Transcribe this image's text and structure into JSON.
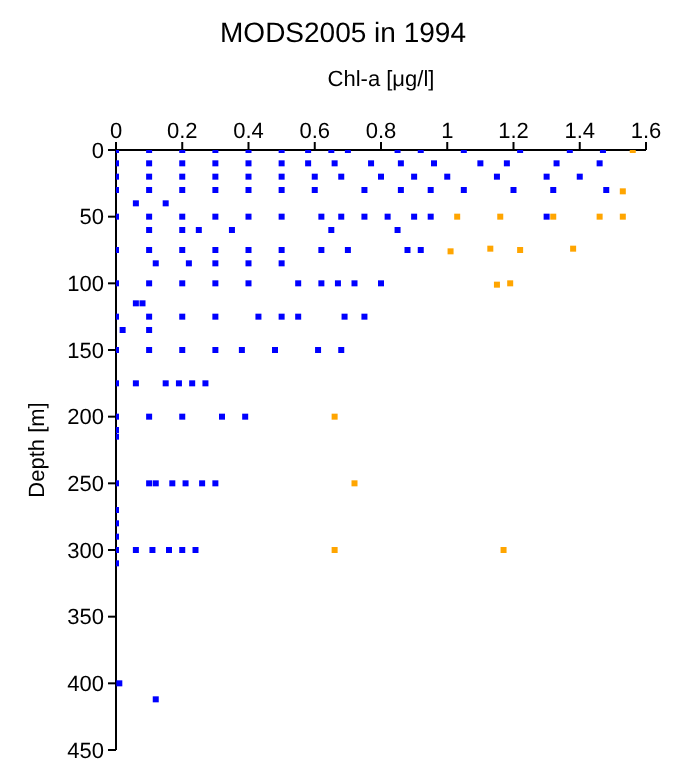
{
  "chart_data": {
    "type": "scatter",
    "title": "MODS2005 in 1994",
    "xlabel": "Chl-a [μg/l]",
    "ylabel": "Depth [m]",
    "xlim": [
      0,
      1.6
    ],
    "xticks": [
      0,
      0.2,
      0.4,
      0.6,
      0.8,
      1,
      1.2,
      1.4,
      1.6
    ],
    "ylim": [
      450,
      0
    ],
    "yticks": [
      0,
      50,
      100,
      150,
      200,
      250,
      300,
      350,
      400,
      450
    ],
    "grid": false,
    "legend": false,
    "marker": "square",
    "series": [
      {
        "color": "#0000ff",
        "x": [
          0,
          0.1,
          0.2,
          0.3,
          0.4,
          0.5,
          0.58,
          0.65,
          0.7,
          0.85,
          0.92,
          1.05,
          1.22,
          1.37,
          1.47,
          0,
          0.1,
          0.2,
          0.3,
          0.4,
          0.5,
          0.58,
          0.66,
          0.77,
          0.86,
          0.96,
          1.1,
          1.18,
          1.33,
          1.46,
          0,
          0.1,
          0.2,
          0.3,
          0.4,
          0.5,
          0.6,
          0.68,
          0.8,
          0.9,
          1.0,
          1.15,
          1.3,
          1.4,
          0,
          0.1,
          0.2,
          0.3,
          0.4,
          0.5,
          0.6,
          0.75,
          0.86,
          0.95,
          1.05,
          1.2,
          1.32,
          1.48,
          0.06,
          0.15,
          0,
          0.1,
          0.2,
          0.3,
          0.4,
          0.5,
          0.62,
          0.68,
          0.75,
          0.82,
          0.9,
          0.95,
          1.3,
          0.1,
          0.2,
          0.25,
          0.35,
          0.65,
          0.85,
          0,
          0.1,
          0.2,
          0.3,
          0.4,
          0.5,
          0.62,
          0.7,
          0.88,
          0.92,
          0.12,
          0.22,
          0.3,
          0.4,
          0.5,
          0,
          0.1,
          0.2,
          0.3,
          0.4,
          0.55,
          0.62,
          0.67,
          0.72,
          0.8,
          0.06,
          0.08,
          0,
          0.1,
          0.2,
          0.3,
          0.43,
          0.5,
          0.55,
          0.69,
          0.75,
          0.02,
          0.1,
          0,
          0.1,
          0.2,
          0.3,
          0.38,
          0.48,
          0.61,
          0.68,
          0,
          0.06,
          0.15,
          0.19,
          0.23,
          0.27,
          0,
          0.1,
          0.2,
          0.32,
          0.39,
          0,
          0,
          0,
          0.1,
          0.12,
          0.17,
          0.21,
          0.26,
          0.3,
          0,
          0,
          0,
          0,
          0.06,
          0.11,
          0.16,
          0.2,
          0.24,
          0,
          0.01,
          0.12
        ],
        "values": [
          0,
          0,
          0,
          0,
          0,
          0,
          0,
          0,
          0,
          0,
          0,
          0,
          0,
          0,
          0,
          10,
          10,
          10,
          10,
          10,
          10,
          10,
          10,
          10,
          10,
          10,
          10,
          10,
          10,
          10,
          20,
          20,
          20,
          20,
          20,
          20,
          20,
          20,
          20,
          20,
          20,
          20,
          20,
          20,
          30,
          30,
          30,
          30,
          30,
          30,
          30,
          30,
          30,
          30,
          30,
          30,
          30,
          30,
          40,
          40,
          50,
          50,
          50,
          50,
          50,
          50,
          50,
          50,
          50,
          50,
          50,
          50,
          50,
          60,
          60,
          60,
          60,
          60,
          60,
          75,
          75,
          75,
          75,
          75,
          75,
          75,
          75,
          75,
          75,
          85,
          85,
          85,
          85,
          85,
          100,
          100,
          100,
          100,
          100,
          100,
          100,
          100,
          100,
          100,
          115,
          115,
          125,
          125,
          125,
          125,
          125,
          125,
          125,
          125,
          125,
          135,
          135,
          150,
          150,
          150,
          150,
          150,
          150,
          150,
          150,
          175,
          175,
          175,
          175,
          175,
          175,
          200,
          200,
          200,
          200,
          200,
          210,
          215,
          250,
          250,
          250,
          250,
          250,
          250,
          250,
          270,
          280,
          290,
          300,
          300,
          300,
          300,
          300,
          300,
          310,
          400,
          412
        ]
      },
      {
        "color": "#ffa500",
        "x": [
          1.56,
          1.53,
          1.03,
          1.16,
          1.32,
          1.46,
          1.53,
          1.01,
          1.13,
          1.22,
          1.38,
          1.15,
          1.19,
          0.66,
          0.72,
          0.66,
          1.17
        ],
        "values": [
          0,
          31,
          50,
          50,
          50,
          50,
          50,
          76,
          74,
          75,
          74,
          101,
          100,
          200,
          250,
          300,
          300
        ]
      }
    ]
  }
}
